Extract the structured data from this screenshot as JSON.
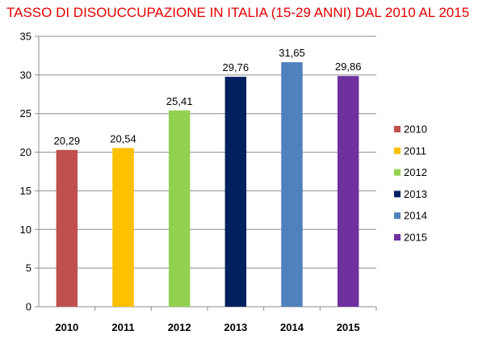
{
  "chart_data": {
    "type": "bar",
    "title": "TASSO DI DISOUCCUPAZIONE IN ITALIA (15-29 ANNI) DAL 2010 AL 2015",
    "categories": [
      "2010",
      "2011",
      "2012",
      "2013",
      "2014",
      "2015"
    ],
    "values": [
      20.29,
      20.54,
      25.41,
      29.76,
      31.65,
      29.86
    ],
    "data_labels": [
      "20,29",
      "20,54",
      "25,41",
      "29,76",
      "31,65",
      "29,86"
    ],
    "colors": [
      "#c0504d",
      "#ffc000",
      "#92d050",
      "#002060",
      "#4f81bd",
      "#7030a0"
    ],
    "ylim": [
      0,
      35
    ],
    "yticks": [
      0,
      5,
      10,
      15,
      20,
      25,
      30,
      35
    ],
    "grid": true,
    "legend_position": "right",
    "legend": [
      "2010",
      "2011",
      "2012",
      "2013",
      "2014",
      "2015"
    ],
    "xlabel": "",
    "ylabel": ""
  }
}
